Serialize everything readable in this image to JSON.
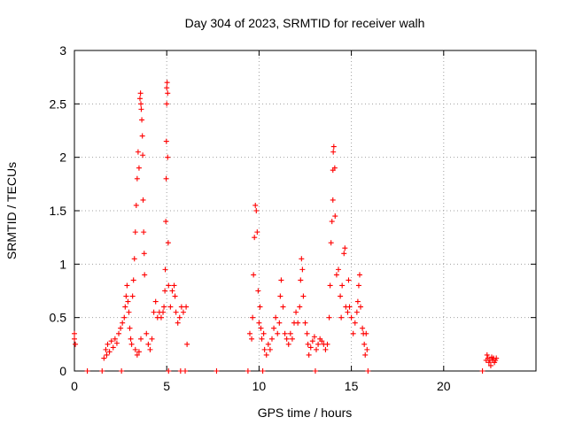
{
  "chart_data": {
    "type": "scatter",
    "title": "Day 304 of 2023, SRMTID for receiver walh",
    "xlabel": "GPS time / hours",
    "ylabel": "SRMTID / TECUs",
    "xlim": [
      0,
      25
    ],
    "ylim": [
      0,
      3
    ],
    "xticks": [
      0,
      5,
      10,
      15,
      20
    ],
    "xtick_labels": [
      "0",
      "5",
      "10",
      "15",
      "20"
    ],
    "yticks": [
      0,
      0.5,
      1,
      1.5,
      2,
      2.5,
      3
    ],
    "ytick_labels": [
      "0",
      "0.5",
      "1",
      "1.5",
      "2",
      "2.5",
      "3"
    ],
    "grid": true,
    "legend": "none",
    "series": [
      {
        "name": "SRMTID",
        "color": "#ff0000",
        "marker": "plus",
        "points": [
          [
            0.0,
            0.35
          ],
          [
            0.0,
            0.3
          ],
          [
            0.05,
            0.25
          ],
          [
            0.7,
            0.0
          ],
          [
            1.5,
            0.0
          ],
          [
            1.6,
            0.12
          ],
          [
            1.7,
            0.2
          ],
          [
            1.75,
            0.15
          ],
          [
            1.8,
            0.25
          ],
          [
            1.9,
            0.18
          ],
          [
            2.0,
            0.28
          ],
          [
            2.1,
            0.22
          ],
          [
            2.2,
            0.3
          ],
          [
            2.3,
            0.26
          ],
          [
            2.4,
            0.35
          ],
          [
            2.5,
            0.4
          ],
          [
            2.55,
            0.0
          ],
          [
            2.6,
            0.45
          ],
          [
            2.7,
            0.5
          ],
          [
            2.75,
            0.6
          ],
          [
            2.8,
            0.7
          ],
          [
            2.85,
            0.8
          ],
          [
            2.9,
            0.65
          ],
          [
            2.95,
            0.55
          ],
          [
            3.0,
            0.4
          ],
          [
            3.05,
            0.3
          ],
          [
            3.1,
            0.25
          ],
          [
            3.15,
            0.7
          ],
          [
            3.2,
            0.85
          ],
          [
            3.25,
            1.05
          ],
          [
            3.3,
            1.3
          ],
          [
            3.35,
            1.55
          ],
          [
            3.4,
            1.8
          ],
          [
            3.45,
            2.05
          ],
          [
            3.5,
            1.9
          ],
          [
            3.55,
            2.55
          ],
          [
            3.58,
            2.6
          ],
          [
            3.6,
            2.5
          ],
          [
            3.62,
            2.45
          ],
          [
            3.65,
            2.35
          ],
          [
            3.68,
            2.2
          ],
          [
            3.7,
            2.02
          ],
          [
            3.72,
            1.6
          ],
          [
            3.75,
            1.3
          ],
          [
            3.78,
            1.1
          ],
          [
            3.8,
            0.9
          ],
          [
            3.3,
            0.2
          ],
          [
            3.4,
            0.15
          ],
          [
            3.5,
            0.18
          ],
          [
            3.6,
            0.3
          ],
          [
            3.9,
            0.35
          ],
          [
            4.0,
            0.25
          ],
          [
            4.1,
            0.2
          ],
          [
            4.2,
            0.3
          ],
          [
            4.3,
            0.55
          ],
          [
            4.4,
            0.65
          ],
          [
            4.5,
            0.5
          ],
          [
            4.6,
            0.55
          ],
          [
            4.7,
            0.5
          ],
          [
            4.8,
            0.55
          ],
          [
            4.85,
            0.6
          ],
          [
            4.9,
            0.75
          ],
          [
            4.92,
            0.95
          ],
          [
            4.95,
            1.4
          ],
          [
            4.97,
            1.8
          ],
          [
            4.98,
            2.15
          ],
          [
            5.0,
            2.5
          ],
          [
            5.0,
            2.65
          ],
          [
            5.02,
            2.7
          ],
          [
            5.05,
            2.6
          ],
          [
            5.05,
            2.0
          ],
          [
            5.08,
            1.2
          ],
          [
            5.1,
            0.8
          ],
          [
            5.1,
            0.0
          ],
          [
            5.2,
            0.6
          ],
          [
            5.3,
            0.75
          ],
          [
            5.4,
            0.8
          ],
          [
            5.45,
            0.7
          ],
          [
            5.5,
            0.55
          ],
          [
            5.6,
            0.45
          ],
          [
            5.7,
            0.5
          ],
          [
            5.75,
            0.0
          ],
          [
            5.8,
            0.6
          ],
          [
            5.9,
            0.55
          ],
          [
            6.0,
            0.0
          ],
          [
            6.05,
            0.6
          ],
          [
            6.1,
            0.25
          ],
          [
            7.7,
            0.0
          ],
          [
            9.4,
            0.0
          ],
          [
            9.5,
            0.35
          ],
          [
            9.6,
            0.3
          ],
          [
            9.65,
            0.5
          ],
          [
            9.7,
            0.9
          ],
          [
            9.75,
            1.25
          ],
          [
            9.8,
            1.55
          ],
          [
            9.85,
            1.5
          ],
          [
            9.9,
            1.3
          ],
          [
            9.95,
            0.75
          ],
          [
            10.0,
            0.45
          ],
          [
            10.05,
            0.6
          ],
          [
            10.1,
            0.4
          ],
          [
            10.15,
            0.3
          ],
          [
            10.2,
            0.0
          ],
          [
            10.25,
            0.35
          ],
          [
            10.3,
            0.2
          ],
          [
            10.4,
            0.15
          ],
          [
            10.5,
            0.25
          ],
          [
            10.6,
            0.2
          ],
          [
            10.7,
            0.3
          ],
          [
            10.8,
            0.4
          ],
          [
            10.9,
            0.5
          ],
          [
            11.0,
            0.35
          ],
          [
            11.1,
            0.45
          ],
          [
            11.15,
            0.7
          ],
          [
            11.2,
            0.85
          ],
          [
            11.3,
            0.6
          ],
          [
            11.4,
            0.35
          ],
          [
            11.5,
            0.3
          ],
          [
            11.6,
            0.25
          ],
          [
            11.7,
            0.35
          ],
          [
            11.8,
            0.3
          ],
          [
            11.9,
            0.45
          ],
          [
            12.0,
            0.55
          ],
          [
            12.1,
            0.45
          ],
          [
            12.2,
            0.6
          ],
          [
            12.25,
            0.85
          ],
          [
            12.3,
            1.05
          ],
          [
            12.35,
            0.95
          ],
          [
            12.4,
            0.7
          ],
          [
            12.5,
            0.45
          ],
          [
            12.6,
            0.35
          ],
          [
            12.65,
            0.25
          ],
          [
            12.7,
            0.15
          ],
          [
            12.8,
            0.22
          ],
          [
            12.9,
            0.28
          ],
          [
            13.0,
            0.32
          ],
          [
            13.05,
            0.0
          ],
          [
            13.1,
            0.2
          ],
          [
            13.2,
            0.25
          ],
          [
            13.3,
            0.3
          ],
          [
            13.4,
            0.28
          ],
          [
            13.5,
            0.25
          ],
          [
            13.6,
            0.2
          ],
          [
            13.7,
            0.25
          ],
          [
            13.8,
            0.5
          ],
          [
            13.85,
            0.8
          ],
          [
            13.9,
            1.2
          ],
          [
            13.95,
            1.4
          ],
          [
            14.0,
            1.6
          ],
          [
            14.0,
            1.88
          ],
          [
            14.02,
            2.05
          ],
          [
            14.05,
            2.1
          ],
          [
            14.1,
            1.9
          ],
          [
            14.12,
            1.45
          ],
          [
            14.2,
            0.9
          ],
          [
            14.3,
            0.95
          ],
          [
            14.4,
            0.7
          ],
          [
            14.45,
            0.5
          ],
          [
            14.5,
            0.8
          ],
          [
            14.6,
            1.1
          ],
          [
            14.65,
            1.15
          ],
          [
            14.7,
            0.6
          ],
          [
            14.8,
            0.55
          ],
          [
            14.85,
            0.85
          ],
          [
            14.9,
            0.6
          ],
          [
            15.0,
            0.5
          ],
          [
            15.1,
            0.35
          ],
          [
            15.2,
            0.45
          ],
          [
            15.3,
            0.55
          ],
          [
            15.35,
            0.65
          ],
          [
            15.4,
            0.8
          ],
          [
            15.45,
            0.9
          ],
          [
            15.5,
            0.6
          ],
          [
            15.6,
            0.4
          ],
          [
            15.65,
            0.35
          ],
          [
            15.7,
            0.25
          ],
          [
            15.75,
            0.15
          ],
          [
            15.8,
            0.35
          ],
          [
            15.85,
            0.2
          ],
          [
            15.9,
            0.0
          ],
          [
            22.1,
            0.0
          ],
          [
            22.3,
            0.1
          ],
          [
            22.35,
            0.15
          ],
          [
            22.4,
            0.12
          ],
          [
            22.45,
            0.08
          ],
          [
            22.5,
            0.1
          ],
          [
            22.55,
            0.05
          ],
          [
            22.6,
            0.13
          ],
          [
            22.65,
            0.1
          ],
          [
            22.7,
            0.12
          ],
          [
            22.75,
            0.08
          ],
          [
            22.8,
            0.1
          ],
          [
            22.85,
            0.12
          ]
        ]
      }
    ]
  }
}
